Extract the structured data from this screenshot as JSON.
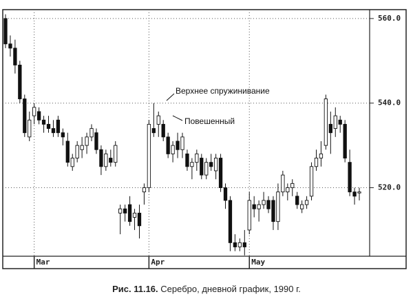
{
  "chart_data": {
    "type": "candlestick",
    "categories": [
      null,
      null,
      null,
      null,
      null,
      null,
      "Mar",
      null,
      null,
      null,
      null,
      null,
      null,
      null,
      null,
      null,
      null,
      null,
      null,
      null,
      null,
      null,
      null,
      null,
      null,
      null,
      null,
      null,
      null,
      null,
      "Apr",
      null,
      null,
      null,
      null,
      null,
      null,
      null,
      null,
      null,
      null,
      null,
      null,
      null,
      null,
      null,
      null,
      null,
      null,
      null,
      null,
      "May",
      null,
      null,
      null,
      null,
      null,
      null,
      null,
      null,
      null,
      null,
      null,
      null,
      null,
      null,
      null,
      null,
      null,
      null,
      null,
      null,
      null,
      null,
      null
    ],
    "open": [
      560,
      554,
      553,
      549,
      541,
      532,
      537,
      538,
      536,
      535,
      534,
      536,
      533,
      531,
      525,
      527,
      529,
      530,
      532,
      533,
      529,
      525,
      527,
      526,
      514,
      515,
      516,
      513,
      514,
      519,
      520,
      534,
      535,
      535,
      532,
      528,
      531,
      529,
      528,
      525,
      526,
      527,
      523,
      526,
      524,
      527,
      520,
      517,
      507,
      506,
      507,
      510,
      516,
      515,
      516,
      517,
      517,
      512,
      519,
      519,
      520,
      518,
      515,
      516,
      518,
      525,
      527,
      530,
      535,
      534,
      536,
      535,
      526,
      519,
      519
    ],
    "high": [
      561,
      556,
      555,
      550,
      542,
      538,
      540,
      539,
      537,
      537,
      536,
      537,
      534,
      533,
      528,
      531,
      532,
      533,
      535,
      534,
      530,
      529,
      529,
      531,
      516,
      516,
      518,
      515,
      516,
      521,
      536,
      540,
      538,
      536,
      533,
      531,
      533,
      533,
      529,
      527,
      529,
      528,
      527,
      528,
      528,
      528,
      521,
      518,
      509,
      508,
      510,
      519,
      518,
      517,
      519,
      518,
      518,
      521,
      524,
      521,
      522,
      519,
      517,
      518,
      526,
      529,
      531,
      542,
      538,
      539,
      537,
      536,
      529,
      520,
      520
    ],
    "low": [
      553,
      551,
      547,
      540,
      532,
      531,
      535,
      535,
      533,
      533,
      532,
      532,
      530,
      525,
      524,
      526,
      527,
      528,
      531,
      528,
      523,
      524,
      525,
      525,
      509,
      512,
      511,
      510,
      508,
      516,
      519,
      532,
      532,
      531,
      527,
      526,
      527,
      527,
      524,
      522,
      524,
      522,
      522,
      524,
      522,
      519,
      515,
      505,
      505,
      505,
      504,
      509,
      513,
      512,
      515,
      514,
      510,
      510,
      518,
      517,
      518,
      515,
      514,
      515,
      517,
      524,
      525,
      529,
      528,
      532,
      533,
      526,
      518,
      516,
      517
    ],
    "close": [
      554,
      553,
      549,
      541,
      533,
      536,
      539,
      536,
      535,
      534,
      533,
      533,
      532,
      526,
      527,
      530,
      530,
      532,
      534,
      529,
      525,
      528,
      526,
      530,
      515,
      514,
      512,
      514,
      511,
      520,
      535,
      533,
      537,
      532,
      528,
      530,
      529,
      532,
      525,
      526,
      528,
      523,
      526,
      525,
      527,
      520,
      517,
      507,
      506,
      507,
      506,
      517,
      515,
      516,
      517,
      515,
      512,
      519,
      523,
      520,
      521,
      516,
      516,
      517,
      525,
      527,
      528,
      541,
      533,
      537,
      535,
      527,
      519,
      518,
      519
    ],
    "ylim": [
      503.8,
      562.1
    ],
    "yticks": [
      {
        "value": 520,
        "label": "520.0"
      },
      {
        "value": 540,
        "label": "540.0"
      },
      {
        "value": 560,
        "label": "560.0"
      }
    ],
    "grid": true,
    "annotations": [
      "Верхнее спружинивание",
      "Повешенный"
    ],
    "figure_label": "Рис. 11.16.",
    "caption": "Серебро, дневной график, 1990 г."
  }
}
